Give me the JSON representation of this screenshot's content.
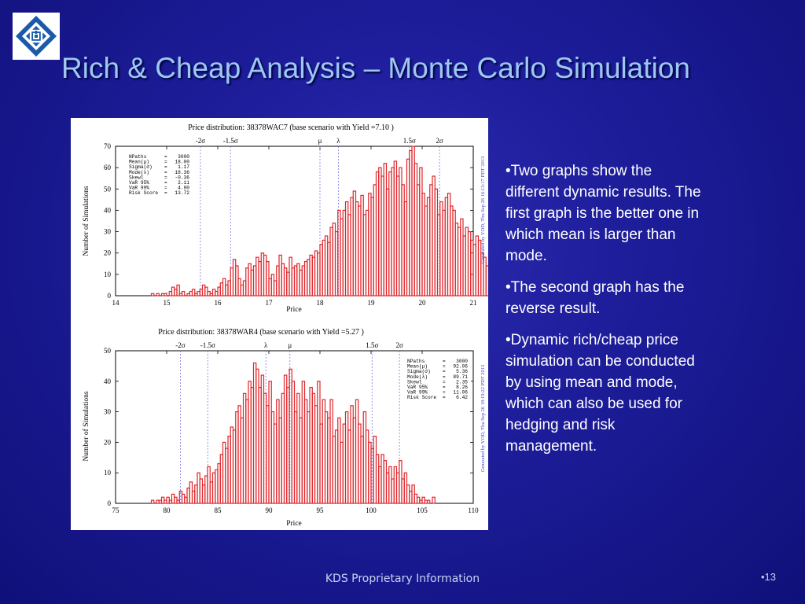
{
  "slide": {
    "title": "Rich & Cheap Analysis – Monte Carlo Simulation",
    "bullets": [
      "•Two graphs show the different dynamic results. The first graph is the better one in which mean is larger than mode.",
      "•The second graph has the reverse result.",
      "•Dynamic rich/cheap price simulation can be conducted by using mean and mode, which can also be used for hedging and risk management."
    ],
    "footer": "KDS Proprietary Information",
    "page_number": "•13",
    "colors": {
      "background": "#1c1c98",
      "title": "#9dc8f2",
      "text": "#ffffff",
      "bars": "#e0262b",
      "markers": "#7878e8"
    }
  },
  "logo": {
    "icon": "kds-square-spiral-logo"
  },
  "chart_data": [
    {
      "type": "bar",
      "title": "Price distribution: 38378WAC7 (base scenario with Yield =7.10 )",
      "xlabel": "Price",
      "ylabel": "Number of Simulations",
      "xlim": [
        14,
        21
      ],
      "ylim": [
        0,
        70
      ],
      "xticks": [
        14,
        15,
        16,
        17,
        18,
        19,
        20,
        21
      ],
      "yticks": [
        0,
        10,
        20,
        30,
        40,
        50,
        60,
        70
      ],
      "side_label": "Generated by YOD, Thu Sep 26 16:13:17 PDT 2013",
      "stats": [
        [
          "NPaths",
          "=",
          "3000"
        ],
        [
          "Mean(μ)",
          "=",
          "18.00"
        ],
        [
          "Sigma(σ)",
          "=",
          "1.17"
        ],
        [
          "Mode(λ)",
          "=",
          "18.36"
        ],
        [
          "Skewl",
          "=",
          "-0.36"
        ],
        [
          "VaR 95%",
          "=",
          "2.11"
        ],
        [
          "VaR 99%",
          "=",
          "4.00"
        ],
        [
          "Risk Score",
          "=",
          "13.72"
        ]
      ],
      "markers": [
        {
          "label": "-2σ",
          "x": 15.66
        },
        {
          "label": "-1.5σ",
          "x": 16.25
        },
        {
          "label": "μ",
          "x": 18.0
        },
        {
          "label": "λ",
          "x": 18.36
        },
        {
          "label": "1.5σ",
          "x": 19.75
        },
        {
          "label": "2σ",
          "x": 20.34
        }
      ],
      "bins": {
        "start": 14.7,
        "width": 0.05
      },
      "counts": [
        1,
        0,
        1,
        0,
        1,
        1,
        0,
        2,
        4,
        3,
        5,
        1,
        2,
        0,
        1,
        2,
        3,
        1,
        2,
        3,
        5,
        4,
        2,
        1,
        3,
        2,
        4,
        6,
        8,
        5,
        7,
        13,
        17,
        14,
        8,
        5,
        7,
        13,
        15,
        12,
        14,
        18,
        16,
        20,
        19,
        16,
        8,
        10,
        7,
        14,
        19,
        15,
        13,
        11,
        18,
        13,
        14,
        15,
        12,
        14,
        16,
        17,
        19,
        18,
        21,
        20,
        24,
        26,
        28,
        25,
        32,
        34,
        30,
        40,
        36,
        40,
        44,
        38,
        46,
        49,
        44,
        42,
        47,
        38,
        40,
        48,
        46,
        52,
        58,
        60,
        56,
        62,
        50,
        58,
        60,
        63,
        56,
        60,
        52,
        44,
        64,
        68,
        70,
        62,
        52,
        60,
        48,
        42,
        46,
        52,
        56,
        50,
        38,
        44,
        40,
        46,
        48,
        42,
        40,
        34,
        32,
        36,
        28,
        32,
        30,
        26,
        24,
        28,
        26,
        20,
        18,
        14,
        20,
        16,
        12,
        14,
        10,
        6,
        4,
        8,
        3,
        6,
        4,
        6,
        3,
        4,
        2,
        3,
        2,
        1,
        2,
        1,
        1,
        1,
        0,
        1,
        1
      ]
    },
    {
      "type": "bar",
      "title": "Price distribution: 38378WAR4 (base scenario with Yield =5.27 )",
      "xlabel": "Price",
      "ylabel": "Number of Simulations",
      "xlim": [
        75,
        110
      ],
      "ylim": [
        0,
        50
      ],
      "xticks": [
        75,
        80,
        85,
        90,
        95,
        100,
        105,
        110
      ],
      "yticks": [
        0,
        10,
        20,
        30,
        40,
        50
      ],
      "side_label": "Generated by YOD, Thu Sep 26 18:19:22 PDT 2013",
      "stats": [
        [
          "NPaths",
          "=",
          "3000"
        ],
        [
          "Mean(μ)",
          "=",
          "92.06"
        ],
        [
          "Sigma(σ)",
          "=",
          "5.36"
        ],
        [
          "Mode(λ)",
          "=",
          "89.71"
        ],
        [
          "Skewl",
          "=",
          "2.35"
        ],
        [
          "VaR 95%",
          "=",
          "8.26"
        ],
        [
          "VaR 99%",
          "=",
          "11.06"
        ],
        [
          "Risk Score",
          "=",
          "6.42"
        ]
      ],
      "markers": [
        {
          "label": "-2σ",
          "x": 81.34
        },
        {
          "label": "-1.5σ",
          "x": 84.02
        },
        {
          "label": "λ",
          "x": 89.71
        },
        {
          "label": "μ",
          "x": 92.06
        },
        {
          "label": "1.5σ",
          "x": 100.1
        },
        {
          "label": "2σ",
          "x": 102.78
        }
      ],
      "bins": {
        "start": 78.5,
        "width": 0.25
      },
      "counts": [
        1,
        0,
        1,
        1,
        2,
        1,
        2,
        1,
        3,
        2,
        1,
        4,
        3,
        2,
        5,
        7,
        4,
        6,
        10,
        8,
        6,
        9,
        12,
        7,
        10,
        11,
        13,
        16,
        20,
        18,
        22,
        25,
        24,
        30,
        32,
        28,
        36,
        34,
        40,
        38,
        46,
        44,
        38,
        42,
        36,
        32,
        40,
        30,
        26,
        34,
        28,
        36,
        42,
        38,
        44,
        40,
        30,
        36,
        28,
        40,
        34,
        30,
        38,
        36,
        32,
        40,
        26,
        34,
        30,
        28,
        34,
        22,
        24,
        28,
        20,
        26,
        30,
        24,
        32,
        28,
        34,
        26,
        22,
        30,
        24,
        20,
        18,
        22,
        16,
        12,
        16,
        14,
        10,
        12,
        8,
        12,
        10,
        14,
        8,
        10,
        6,
        4,
        6,
        3,
        2,
        1,
        2,
        1,
        1,
        0,
        2
      ]
    }
  ]
}
